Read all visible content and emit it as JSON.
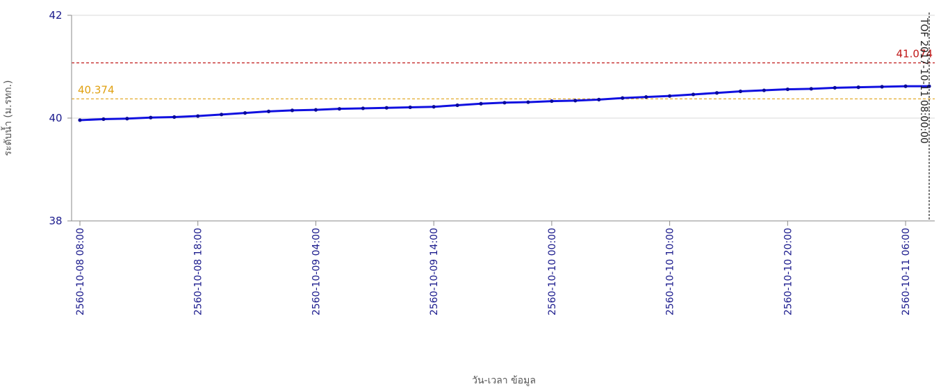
{
  "chart_data": {
    "type": "line",
    "xlabel": "วัน-เวลา ข้อมูล",
    "ylabel": "ระดับน้ำ (ม.รทก.)",
    "ylim": [
      38,
      42
    ],
    "yticks": [
      "38",
      "40",
      "42"
    ],
    "x_range_hours": [
      0,
      72
    ],
    "xticks": [
      {
        "hours": 0,
        "label": "2560-10-08 08:00"
      },
      {
        "hours": 10,
        "label": "2560-10-08 18:00"
      },
      {
        "hours": 20,
        "label": "2560-10-09 04:00"
      },
      {
        "hours": 30,
        "label": "2560-10-09 14:00"
      },
      {
        "hours": 40,
        "label": "2560-10-10 00:00"
      },
      {
        "hours": 50,
        "label": "2560-10-10 10:00"
      },
      {
        "hours": 60,
        "label": "2560-10-10 20:00"
      },
      {
        "hours": 70,
        "label": "2560-10-11 06:00"
      }
    ],
    "grid": true,
    "reference_lines": [
      {
        "value": 41.074,
        "label": "41.074",
        "color": "#c01818"
      },
      {
        "value": 40.374,
        "label": "40.374",
        "color": "#e0a010"
      }
    ],
    "marker": {
      "hours": 72,
      "label": "TOF 2017-10-11 08:00:00"
    },
    "series": [
      {
        "color": "#1010e0",
        "x": [
          0,
          2,
          4,
          6,
          8,
          10,
          12,
          14,
          16,
          18,
          20,
          22,
          24,
          26,
          28,
          30,
          32,
          34,
          36,
          38,
          40,
          42,
          44,
          46,
          48,
          50,
          52,
          54,
          56,
          58,
          60,
          62,
          64,
          66,
          68,
          70,
          72
        ],
        "y": [
          39.96,
          39.98,
          39.99,
          40.01,
          40.02,
          40.04,
          40.07,
          40.1,
          40.13,
          40.15,
          40.16,
          40.18,
          40.19,
          40.2,
          40.21,
          40.22,
          40.25,
          40.28,
          40.3,
          40.31,
          40.33,
          40.34,
          40.36,
          40.39,
          40.41,
          40.43,
          40.46,
          40.49,
          40.52,
          40.54,
          40.56,
          40.57,
          40.59,
          40.6,
          40.61,
          40.62,
          40.62
        ]
      }
    ]
  }
}
